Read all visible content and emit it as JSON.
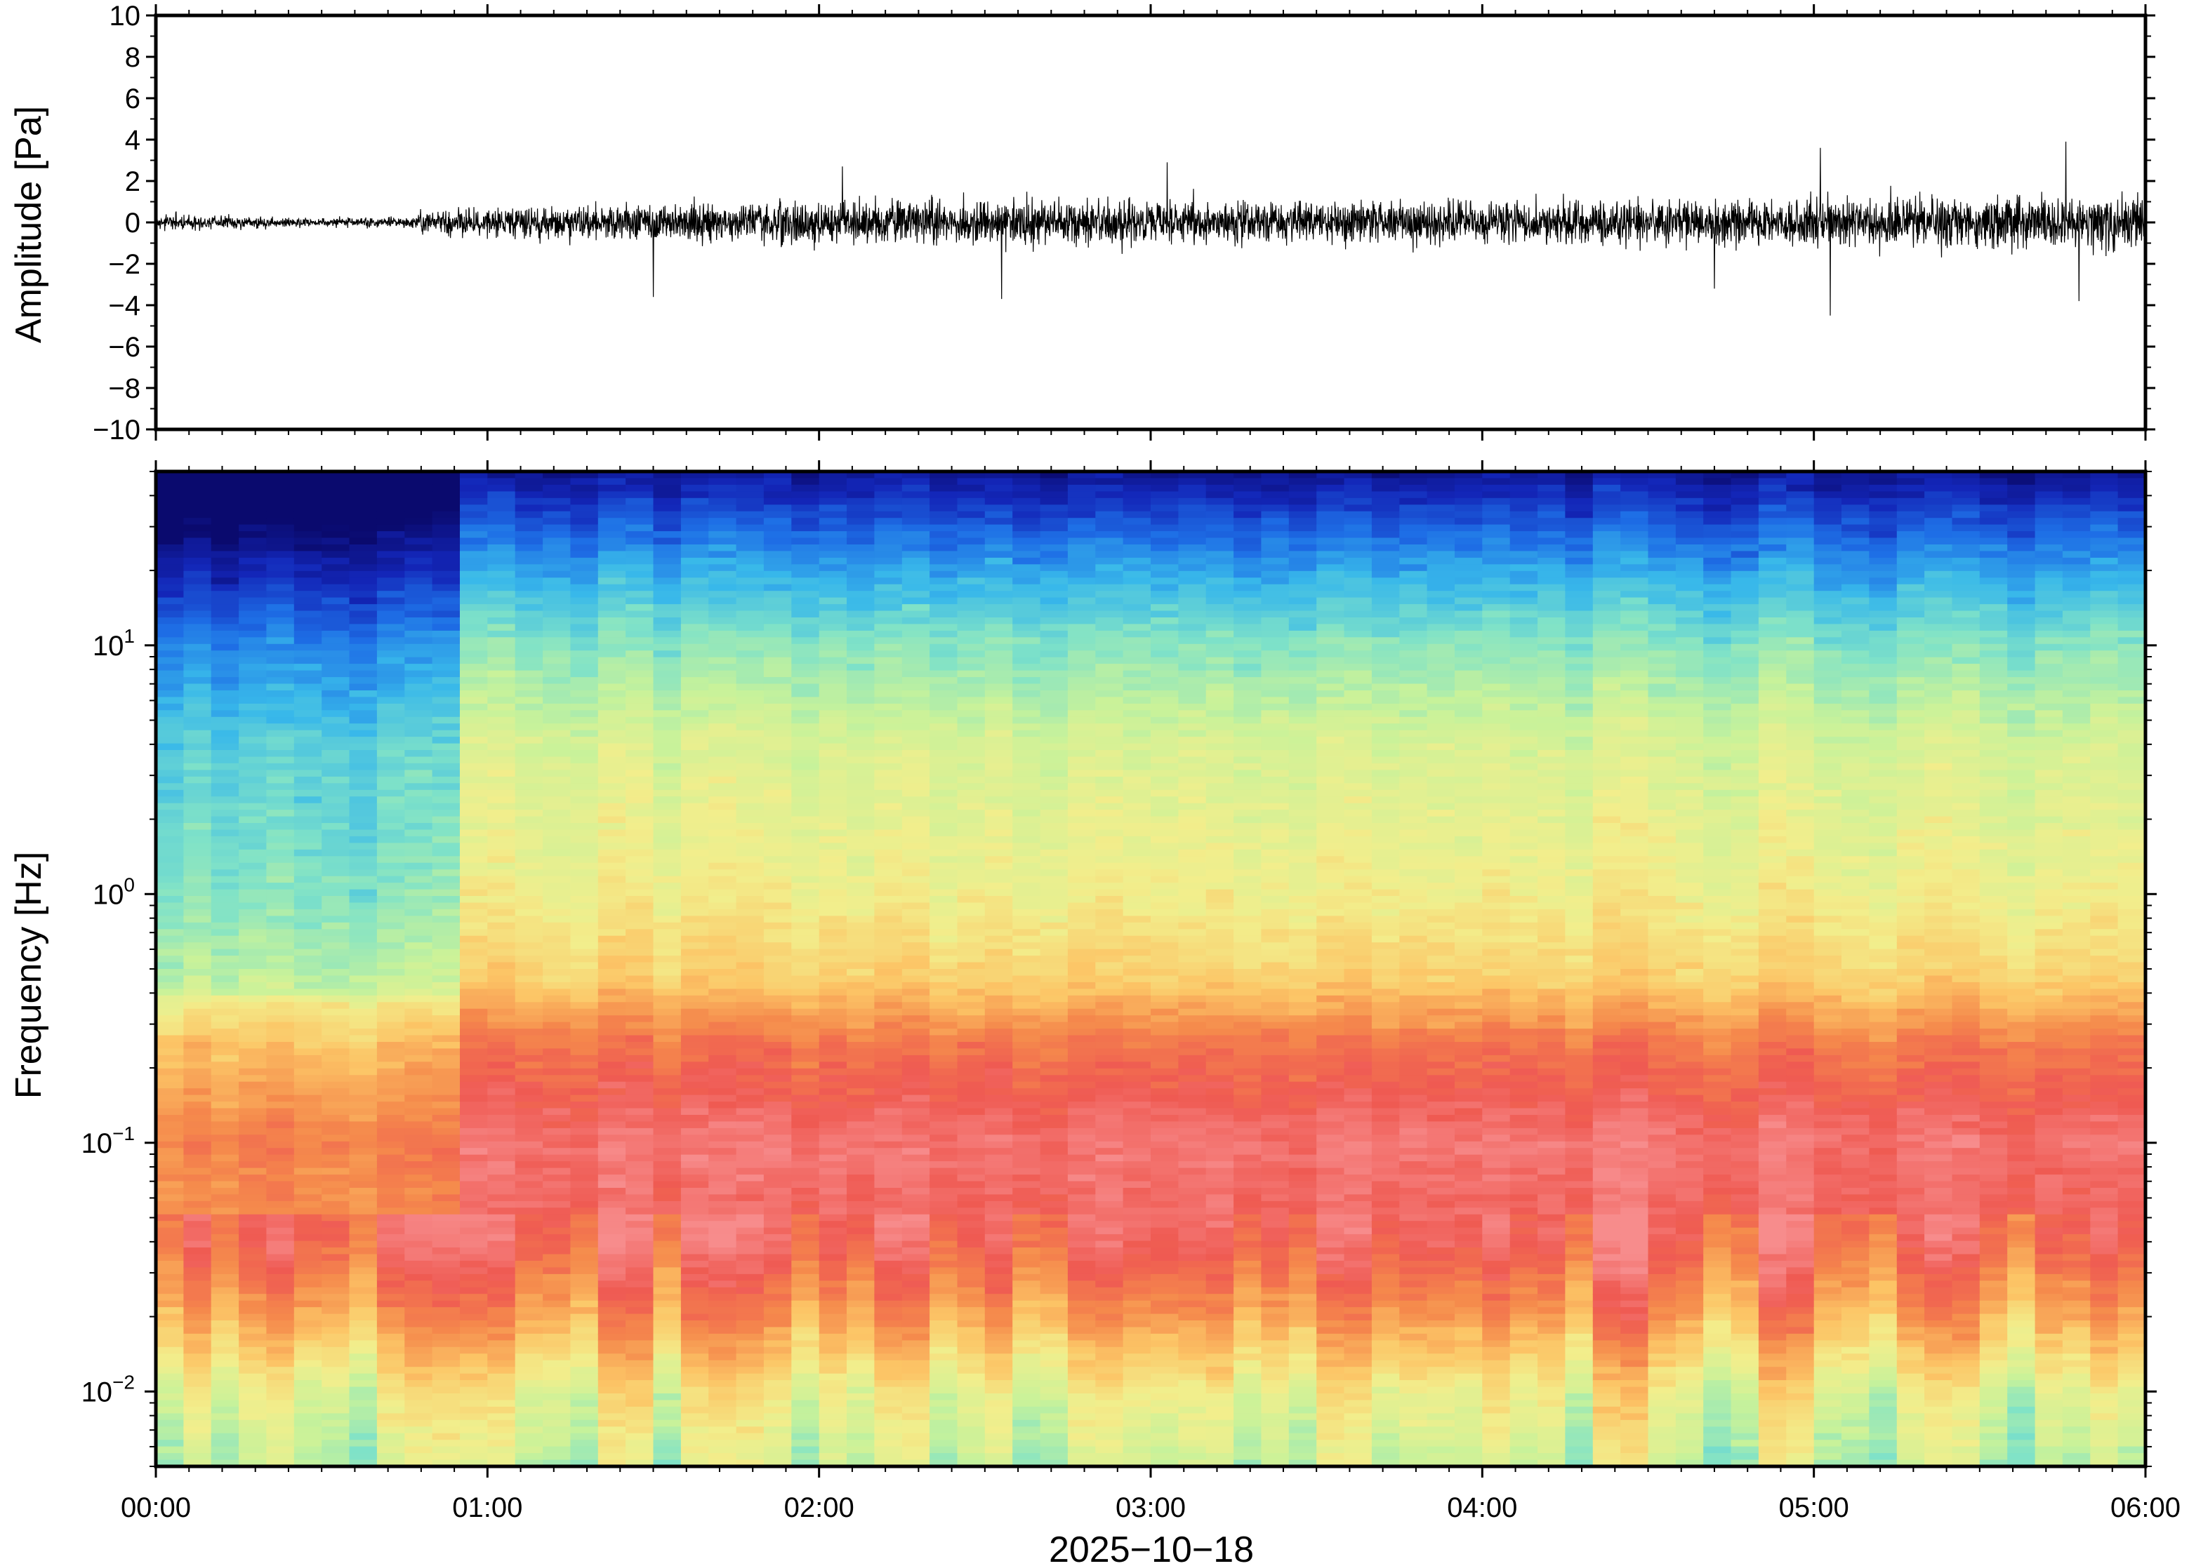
{
  "chart_data": [
    {
      "type": "line",
      "name_role": "waveform",
      "ylabel": "Amplitude [Pa]",
      "ylim": [
        -10,
        10
      ],
      "yticks": [
        10,
        8,
        6,
        4,
        2,
        0,
        -2,
        -4,
        -6,
        -8,
        -10
      ],
      "ytick_labels": [
        "10",
        "8",
        "6",
        "4",
        "2",
        "0",
        "−2",
        "−4",
        "−6",
        "−8",
        "−10"
      ],
      "xlim_hours": [
        0,
        6
      ],
      "line_color": "#000000",
      "envelope": {
        "time_hours": [
          0.0,
          0.25,
          0.5,
          0.75,
          0.85,
          1.0,
          1.5,
          2.0,
          2.5,
          3.0,
          3.5,
          4.0,
          4.5,
          5.0,
          5.5,
          6.0
        ],
        "half_width_pa": [
          0.55,
          0.4,
          0.3,
          0.35,
          0.9,
          1.0,
          1.2,
          1.4,
          1.5,
          1.5,
          1.45,
          1.4,
          1.4,
          1.6,
          1.75,
          1.9
        ]
      },
      "peaks": [
        {
          "time_hours": 1.5,
          "value": -3.6
        },
        {
          "time_hours": 2.07,
          "value": 2.7
        },
        {
          "time_hours": 2.55,
          "value": -3.7
        },
        {
          "time_hours": 3.05,
          "value": 2.9
        },
        {
          "time_hours": 4.7,
          "value": -3.2
        },
        {
          "time_hours": 5.02,
          "value": 3.6
        },
        {
          "time_hours": 5.05,
          "value": -4.5
        },
        {
          "time_hours": 5.76,
          "value": 3.9
        },
        {
          "time_hours": 5.8,
          "value": -3.8
        }
      ]
    },
    {
      "type": "heatmap",
      "name_role": "spectrogram",
      "ylabel": "Frequency [Hz]",
      "yscale": "log",
      "ylim_hz": [
        0.005,
        50
      ],
      "yticks_hz": [
        10,
        1,
        0.1,
        0.01
      ],
      "ytick_labels": [
        {
          "base": "10",
          "exp": "1"
        },
        {
          "base": "10",
          "exp": "0"
        },
        {
          "base": "10",
          "exp": "−1"
        },
        {
          "base": "10",
          "exp": "−2"
        }
      ],
      "xlabel": "2025−10−18",
      "xticks_hours": [
        0,
        1,
        2,
        3,
        4,
        5,
        6
      ],
      "xtick_labels": [
        "00:00",
        "01:00",
        "02:00",
        "03:00",
        "04:00",
        "05:00",
        "06:00"
      ],
      "colormap": [
        "#0a0a6e",
        "#1326b8",
        "#1e6fe6",
        "#38b8ea",
        "#7fe2c8",
        "#c8f29a",
        "#f2ee8c",
        "#fcc566",
        "#f58a4c",
        "#ef5a52",
        "#f78c8c"
      ],
      "quiet_interval_hours": [
        0.0,
        0.85
      ],
      "time_columns": 72
    }
  ]
}
